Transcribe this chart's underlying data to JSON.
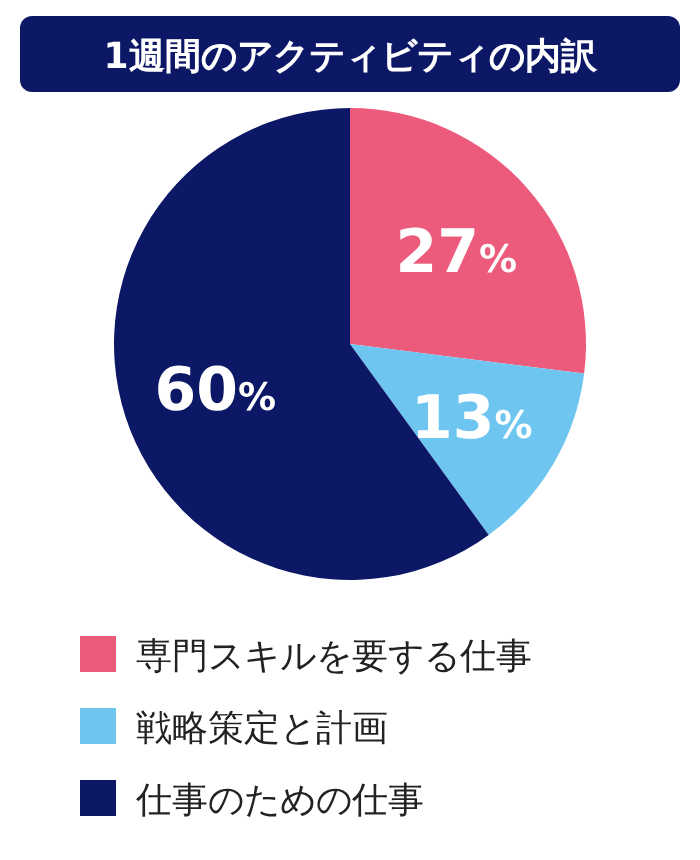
{
  "chart_data": {
    "type": "pie",
    "title": "1週間のアクティビティの内訳",
    "categories": [
      "専門スキルを要する仕事",
      "戦略策定と計画",
      "仕事のための仕事"
    ],
    "values": [
      27,
      13,
      60
    ],
    "colors": [
      "#ec5a7c",
      "#6ec6f0",
      "#0c1766"
    ],
    "value_labels": [
      "27%",
      "13%",
      "60%"
    ],
    "legend": "bottom"
  }
}
